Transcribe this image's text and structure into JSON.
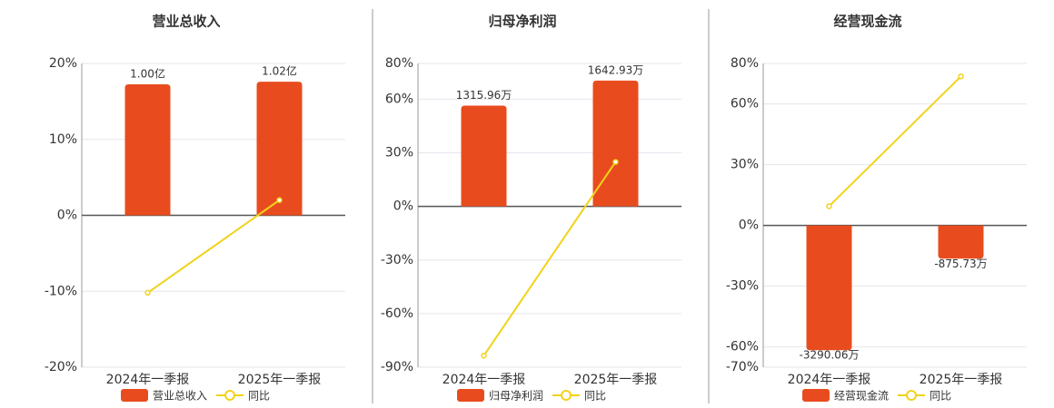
{
  "chart_data": [
    {
      "type": "bar",
      "title": "营业总收入",
      "categories": [
        "2024年一季报",
        "2025年一季报"
      ],
      "series": [
        {
          "name": "营业总收入",
          "color": "#e84c1e",
          "values": [
            100000000,
            102000000
          ],
          "value_labels": [
            "1.00亿",
            "1.02亿"
          ]
        },
        {
          "name": "同比",
          "type": "line",
          "color": "#f2d21b",
          "values": [
            -10.2,
            2.0
          ]
        }
      ],
      "ylim": [
        -20,
        20
      ],
      "yticks": [
        {
          "value": -20,
          "label": "-20%"
        },
        {
          "value": -10,
          "label": "-10%"
        },
        {
          "value": 0,
          "label": "0%"
        },
        {
          "value": 10,
          "label": "10%"
        },
        {
          "value": 20,
          "label": "20%"
        }
      ],
      "grid": true
    },
    {
      "type": "bar",
      "title": "归母净利润",
      "categories": [
        "2024年一季报",
        "2025年一季报"
      ],
      "series": [
        {
          "name": "归母净利润",
          "color": "#e84c1e",
          "values": [
            13159600,
            16429300
          ],
          "value_labels": [
            "1315.96万",
            "1642.93万"
          ]
        },
        {
          "name": "同比",
          "type": "line",
          "color": "#f2d21b",
          "values": [
            -83.5,
            24.9
          ]
        }
      ],
      "ylim": [
        -90,
        80
      ],
      "yticks": [
        {
          "value": -90,
          "label": "-90%"
        },
        {
          "value": -60,
          "label": "-60%"
        },
        {
          "value": -30,
          "label": "-30%"
        },
        {
          "value": 0,
          "label": "0%"
        },
        {
          "value": 30,
          "label": "30%"
        },
        {
          "value": 60,
          "label": "60%"
        },
        {
          "value": 80,
          "label": "80%"
        }
      ],
      "grid": true
    },
    {
      "type": "bar",
      "title": "经营现金流",
      "categories": [
        "2024年一季报",
        "2025年一季报"
      ],
      "series": [
        {
          "name": "经营现金流",
          "color": "#e84c1e",
          "values": [
            -32900600,
            -8757300
          ],
          "value_labels": [
            "-3290.06万",
            "-875.73万"
          ]
        },
        {
          "name": "同比",
          "type": "line",
          "color": "#f2d21b",
          "values": [
            9.5,
            73.6
          ]
        }
      ],
      "ylim": [
        -70,
        80
      ],
      "yticks": [
        {
          "value": -70,
          "label": "-70%"
        },
        {
          "value": -60,
          "label": "-60%"
        },
        {
          "value": -30,
          "label": "-30%"
        },
        {
          "value": 0,
          "label": "0%"
        },
        {
          "value": 30,
          "label": "30%"
        },
        {
          "value": 60,
          "label": "60%"
        },
        {
          "value": 80,
          "label": "80%"
        }
      ],
      "grid": true
    }
  ]
}
